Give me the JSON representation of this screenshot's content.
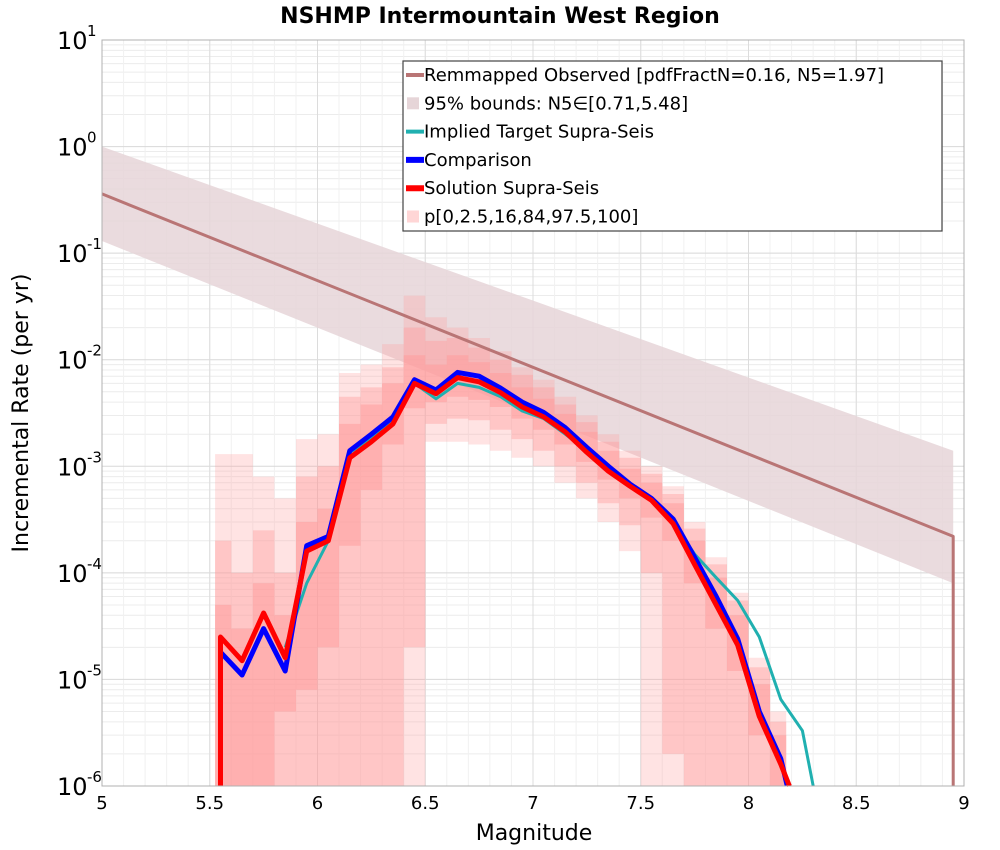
{
  "chart_data": {
    "type": "line",
    "title": "NSHMP Intermountain West Region",
    "xlabel": "Magnitude",
    "ylabel": "Incremental Rate (per yr)",
    "xlim": [
      5,
      9
    ],
    "ylim": [
      1e-06,
      10
    ],
    "y_scale": "log",
    "grid": true,
    "legend_position": "top-right",
    "x_tick_labels": [
      "5",
      "5.5",
      "6",
      "6.5",
      "7",
      "7.5",
      "8",
      "8.5",
      "9"
    ],
    "y_tick_labels": [
      {
        "base": "10",
        "exp": "-6"
      },
      {
        "base": "10",
        "exp": "-5"
      },
      {
        "base": "10",
        "exp": "-4"
      },
      {
        "base": "10",
        "exp": "-3"
      },
      {
        "base": "10",
        "exp": "-2"
      },
      {
        "base": "10",
        "exp": "-1"
      },
      {
        "base": "10",
        "exp": "0"
      },
      {
        "base": "10",
        "exp": "1"
      }
    ],
    "series": [
      {
        "name": "Remmapped Observed [pdfFractN=0.16, N5=1.97]",
        "color": "#b97575",
        "style": "line",
        "x": [
          5.0,
          8.95,
          8.95
        ],
        "y": [
          0.36,
          0.00022,
          1e-06
        ]
      },
      {
        "name": "95% bounds: N5∈[0.71,5.48]",
        "color": "#e6d5d8",
        "style": "band",
        "x": [
          5.0,
          8.95
        ],
        "lower": [
          0.13,
          8e-05
        ],
        "upper": [
          1.0,
          0.0014
        ]
      },
      {
        "name": "Implied Target Supra-Seis",
        "color": "#20b0b0",
        "style": "line",
        "x": [
          5.85,
          5.95,
          6.05,
          6.15,
          6.25,
          6.35,
          6.45,
          6.55,
          6.65,
          6.75,
          6.85,
          6.95,
          7.05,
          7.15,
          7.25,
          7.35,
          7.45,
          7.55,
          7.65,
          7.75,
          7.85,
          7.95,
          8.05,
          8.15,
          8.25,
          8.3
        ],
        "y": [
          2e-05,
          8e-05,
          0.0002,
          0.00135,
          0.0018,
          0.0028,
          0.006,
          0.0043,
          0.006,
          0.0055,
          0.0045,
          0.0033,
          0.0028,
          0.002,
          0.0014,
          0.0009,
          0.00065,
          0.00047,
          0.0003,
          0.00015,
          9e-05,
          5.5e-05,
          2.5e-05,
          6.5e-06,
          3.3e-06,
          1e-06
        ]
      },
      {
        "name": "Comparison",
        "color": "#0000ff",
        "style": "line",
        "x": [
          5.55,
          5.55,
          5.65,
          5.75,
          5.85,
          5.95,
          6.05,
          6.15,
          6.25,
          6.35,
          6.45,
          6.55,
          6.65,
          6.75,
          6.85,
          6.95,
          7.05,
          7.15,
          7.25,
          7.35,
          7.45,
          7.55,
          7.65,
          7.75,
          7.85,
          7.95,
          8.05,
          8.15,
          8.18
        ],
        "y": [
          1e-06,
          1.8e-05,
          1.1e-05,
          3e-05,
          1.2e-05,
          0.00018,
          0.00022,
          0.0014,
          0.002,
          0.0029,
          0.0065,
          0.0052,
          0.0076,
          0.007,
          0.0054,
          0.004,
          0.0032,
          0.0023,
          0.0015,
          0.001,
          0.00068,
          0.0005,
          0.00032,
          0.00014,
          6e-05,
          2.4e-05,
          5e-06,
          1.8e-06,
          1e-06
        ]
      },
      {
        "name": "Solution Supra-Seis",
        "color": "#ff0000",
        "style": "line",
        "x": [
          5.55,
          5.55,
          5.65,
          5.75,
          5.85,
          5.95,
          6.05,
          6.15,
          6.25,
          6.35,
          6.45,
          6.55,
          6.65,
          6.75,
          6.85,
          6.95,
          7.05,
          7.15,
          7.25,
          7.35,
          7.45,
          7.55,
          7.65,
          7.75,
          7.85,
          7.95,
          8.05,
          8.15,
          8.19
        ],
        "y": [
          1e-06,
          2.5e-05,
          1.5e-05,
          4.2e-05,
          1.6e-05,
          0.00016,
          0.0002,
          0.0012,
          0.0017,
          0.0025,
          0.006,
          0.0048,
          0.0068,
          0.0062,
          0.0049,
          0.0036,
          0.0029,
          0.0021,
          0.00135,
          0.0009,
          0.00065,
          0.00048,
          0.00029,
          0.00012,
          5e-05,
          2.1e-05,
          4.5e-06,
          1.6e-06,
          1e-06
        ]
      },
      {
        "name": "p[0,2.5,16,84,97.5,100]",
        "color": "#ff9999",
        "style": "percentile-bands",
        "x": [
          5.5,
          5.55,
          5.65,
          5.75,
          5.85,
          5.95,
          6.05,
          6.15,
          6.25,
          6.35,
          6.45,
          6.55,
          6.65,
          6.75,
          6.85,
          6.95,
          7.05,
          7.15,
          7.25,
          7.35,
          7.45,
          7.55,
          7.65,
          7.75,
          7.85,
          7.95,
          8.05,
          8.15,
          8.2
        ],
        "p0": [
          1e-06,
          1e-06,
          1e-06,
          1e-06,
          1e-06,
          1e-06,
          1e-06,
          1e-06,
          1e-06,
          1e-06,
          1e-06,
          0.0017,
          0.0017,
          0.0016,
          0.0014,
          0.0012,
          0.001,
          0.0007,
          0.0005,
          0.0003,
          0.00016,
          1e-06,
          1e-06,
          1e-06,
          1e-06,
          1e-06,
          1e-06,
          1e-06,
          1e-06
        ],
        "p2_5": [
          1e-06,
          1e-06,
          1e-06,
          1e-06,
          1e-06,
          1e-06,
          1e-06,
          1e-06,
          1e-06,
          1e-06,
          2e-05,
          0.0025,
          0.0028,
          0.0027,
          0.0022,
          0.0018,
          0.0014,
          0.001,
          0.0007,
          0.00045,
          0.00028,
          0.0001,
          2e-06,
          1e-06,
          1e-06,
          1e-06,
          1e-06,
          1e-06,
          1e-06
        ],
        "p16": [
          1e-06,
          1e-06,
          1e-06,
          1e-06,
          5e-06,
          8e-06,
          2e-05,
          0.00018,
          0.0006,
          0.0016,
          0.0035,
          0.004,
          0.0045,
          0.0042,
          0.0036,
          0.0028,
          0.0022,
          0.0016,
          0.0011,
          0.00075,
          0.0005,
          0.00033,
          0.0002,
          8e-05,
          3e-05,
          1.2e-05,
          3e-06,
          1e-06,
          1e-06
        ],
        "p84": [
          1e-06,
          5e-05,
          3e-05,
          8e-05,
          4e-05,
          0.0003,
          0.0004,
          0.0025,
          0.0038,
          0.006,
          0.011,
          0.009,
          0.011,
          0.0095,
          0.0075,
          0.0055,
          0.0043,
          0.0031,
          0.0021,
          0.0014,
          0.00095,
          0.0007,
          0.00045,
          0.0002,
          9e-05,
          4e-05,
          9e-06,
          3e-06,
          1e-06
        ],
        "p97_5": [
          1e-06,
          0.0002,
          0.0001,
          0.00025,
          0.0001,
          0.0008,
          0.001,
          0.0045,
          0.0055,
          0.0085,
          0.02,
          0.015,
          0.016,
          0.013,
          0.01,
          0.0072,
          0.0055,
          0.0038,
          0.0026,
          0.0017,
          0.0012,
          0.00085,
          0.00055,
          0.00026,
          0.00012,
          5.5e-05,
          1.3e-05,
          4e-06,
          1e-06
        ],
        "p100": [
          1e-06,
          0.0013,
          0.0013,
          0.0008,
          0.0005,
          0.0018,
          0.002,
          0.0075,
          0.009,
          0.014,
          0.04,
          0.025,
          0.02,
          0.016,
          0.012,
          0.0085,
          0.0065,
          0.0045,
          0.003,
          0.002,
          0.0014,
          0.001,
          0.00065,
          0.0003,
          0.00014,
          6.5e-05,
          1.6e-05,
          5e-06,
          1e-06
        ]
      }
    ]
  }
}
